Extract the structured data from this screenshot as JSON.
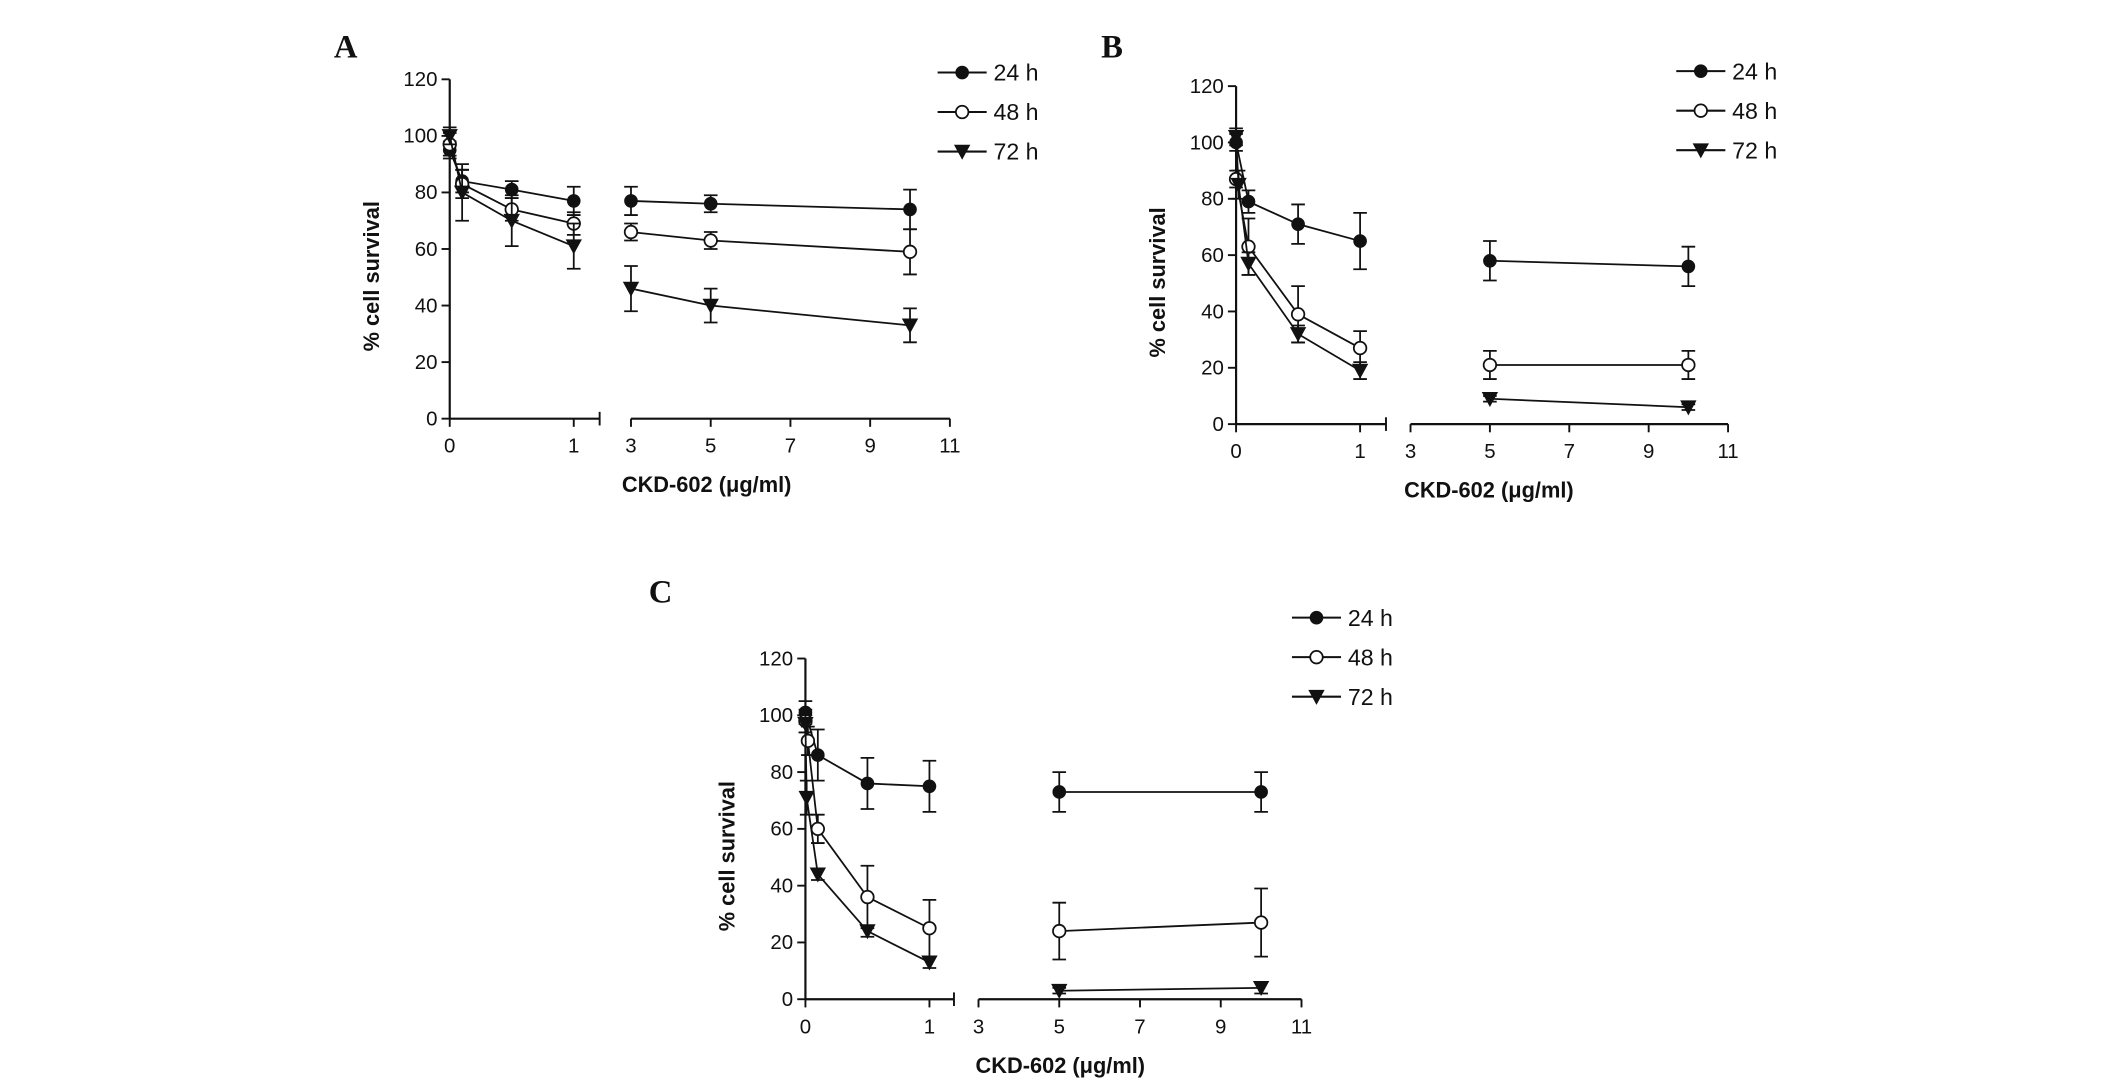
{
  "chart_data": [
    {
      "panel": "A",
      "type": "line",
      "xlabel": "CKD-602 (μg/ml)",
      "ylabel": "% cell survival",
      "ylim": [
        0,
        120
      ],
      "yticks": [
        0,
        20,
        40,
        60,
        80,
        100,
        120
      ],
      "xticks": [
        0,
        1,
        3,
        5,
        7,
        9,
        11
      ],
      "x_axis_break": [
        1.2,
        3
      ],
      "legend": "top-right",
      "series": [
        {
          "name": "24 h",
          "marker": "filled-circle",
          "points": [
            [
              0,
              95,
              3
            ],
            [
              0.1,
              84,
              4
            ],
            [
              0.5,
              81,
              3
            ],
            [
              1,
              77,
              5
            ],
            [
              3,
              77,
              5
            ],
            [
              5,
              76,
              3
            ],
            [
              10,
              74,
              7
            ]
          ]
        },
        {
          "name": "48 h",
          "marker": "open-circle",
          "points": [
            [
              0,
              97,
              4
            ],
            [
              0.1,
              83,
              5
            ],
            [
              0.5,
              74,
              4
            ],
            [
              1,
              69,
              4
            ],
            [
              3,
              66,
              3
            ],
            [
              5,
              63,
              3
            ],
            [
              10,
              59,
              8
            ]
          ]
        },
        {
          "name": "72 h",
          "marker": "filled-triangle-down",
          "points": [
            [
              0,
              100,
              3
            ],
            [
              0.1,
              80,
              10
            ],
            [
              0.5,
              70,
              9
            ],
            [
              1,
              61,
              8
            ],
            [
              3,
              46,
              8
            ],
            [
              5,
              40,
              6
            ],
            [
              10,
              33,
              6
            ]
          ]
        }
      ]
    },
    {
      "panel": "B",
      "type": "line",
      "xlabel": "CKD-602 (μg/ml)",
      "ylabel": "% cell survival",
      "ylim": [
        0,
        120
      ],
      "yticks": [
        0,
        20,
        40,
        60,
        80,
        100,
        120
      ],
      "xticks": [
        0,
        1,
        3,
        5,
        7,
        9,
        11
      ],
      "x_axis_break": [
        1.2,
        3
      ],
      "legend": "top-right",
      "series": [
        {
          "name": "24 h",
          "marker": "filled-circle",
          "points": [
            [
              0,
              100,
              3
            ],
            [
              0.1,
              79,
              4
            ],
            [
              0.5,
              71,
              7
            ],
            [
              1,
              65,
              10
            ],
            [
              5,
              58,
              7
            ],
            [
              10,
              56,
              7
            ]
          ]
        },
        {
          "name": "48 h",
          "marker": "open-circle",
          "points": [
            [
              0,
              87,
              3
            ],
            [
              0.1,
              63,
              10
            ],
            [
              0.5,
              39,
              10
            ],
            [
              1,
              27,
              6
            ],
            [
              5,
              21,
              5
            ],
            [
              10,
              21,
              5
            ]
          ]
        },
        {
          "name": "72 h",
          "marker": "filled-triangle-down",
          "points": [
            [
              0,
              102,
              3
            ],
            [
              0.02,
              85,
              5
            ],
            [
              0.1,
              57,
              4
            ],
            [
              0.5,
              32,
              3
            ],
            [
              1,
              19,
              3
            ],
            [
              5,
              9,
              1
            ],
            [
              10,
              6,
              1
            ]
          ]
        }
      ]
    },
    {
      "panel": "C",
      "type": "line",
      "xlabel": "CKD-602 (μg/ml)",
      "ylabel": "% cell survival",
      "ylim": [
        0,
        120
      ],
      "yticks": [
        0,
        20,
        40,
        60,
        80,
        100,
        120
      ],
      "xticks": [
        0,
        1,
        3,
        5,
        7,
        9,
        11
      ],
      "x_axis_break": [
        1.2,
        3
      ],
      "legend": "top-right",
      "series": [
        {
          "name": "24 h",
          "marker": "filled-circle",
          "points": [
            [
              0,
              101,
              4
            ],
            [
              0.1,
              86,
              9
            ],
            [
              0.5,
              76,
              9
            ],
            [
              1,
              75,
              9
            ],
            [
              5,
              73,
              7
            ],
            [
              10,
              73,
              7
            ]
          ]
        },
        {
          "name": "48 h",
          "marker": "open-circle",
          "points": [
            [
              0,
              98,
              4
            ],
            [
              0.02,
              91,
              5
            ],
            [
              0.1,
              60,
              5
            ],
            [
              0.5,
              36,
              11
            ],
            [
              1,
              25,
              10
            ],
            [
              5,
              24,
              10
            ],
            [
              10,
              27,
              12
            ]
          ]
        },
        {
          "name": "72 h",
          "marker": "filled-triangle-down",
          "points": [
            [
              0,
              97,
              3
            ],
            [
              0.01,
              71,
              6
            ],
            [
              0.1,
              44,
              2
            ],
            [
              0.5,
              24,
              2
            ],
            [
              1,
              13,
              2
            ],
            [
              5,
              3,
              1
            ],
            [
              10,
              4,
              2
            ]
          ]
        }
      ]
    }
  ]
}
